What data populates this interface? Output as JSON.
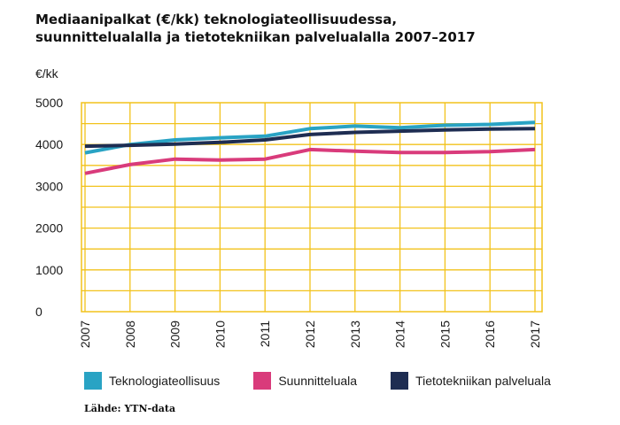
{
  "chart_data": {
    "type": "line",
    "title_lines": [
      "Mediaanipalkat (€/kk) teknologiateollisuudessa,",
      "suunnittelualalla ja tietotekniikan palvelualalla 2007–2017"
    ],
    "ylabel": "€/kk",
    "xlabel": "",
    "ylim": [
      0,
      5000
    ],
    "yticks": [
      0,
      1000,
      2000,
      3000,
      4000,
      5000
    ],
    "grid": true,
    "legend_position": "bottom",
    "x": [
      "2007",
      "2008",
      "2009",
      "2010",
      "2011",
      "2012",
      "2013",
      "2014",
      "2015",
      "2016",
      "2017"
    ],
    "series": [
      {
        "name": "Teknologiateollisuus",
        "color": "#29a3c4",
        "values": [
          3800,
          4000,
          4110,
          4160,
          4200,
          4380,
          4440,
          4400,
          4460,
          4480,
          4530
        ]
      },
      {
        "name": "Suunnitteluala",
        "color": "#d93b7b",
        "values": [
          3310,
          3520,
          3650,
          3630,
          3650,
          3880,
          3840,
          3810,
          3810,
          3830,
          3880
        ]
      },
      {
        "name": "Tietotekniikan palveluala",
        "color": "#1e2d52",
        "values": [
          3960,
          3980,
          4010,
          4050,
          4110,
          4240,
          4290,
          4320,
          4350,
          4370,
          4380
        ]
      }
    ],
    "source": "Lähde: YTN-data"
  },
  "colors": {
    "grid": "#f2c21b",
    "axis_frame": "#f2c21b"
  }
}
